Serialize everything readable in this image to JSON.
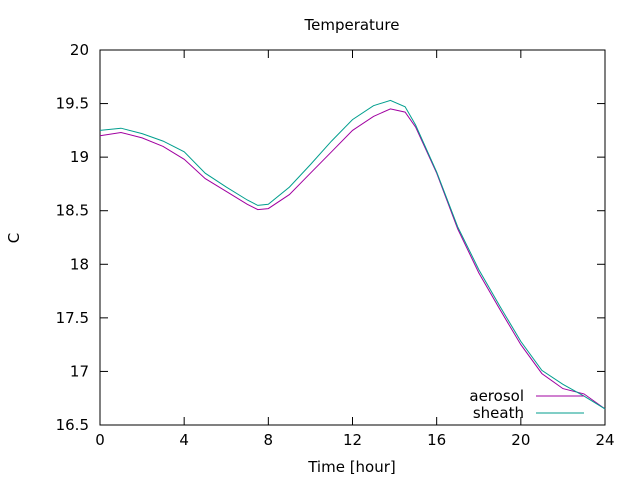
{
  "chart_data": {
    "type": "line",
    "title": "Temperature",
    "xlabel": "Time [hour]",
    "ylabel": "C",
    "xlim": [
      0,
      24
    ],
    "ylim": [
      16.5,
      20
    ],
    "xticks": [
      0,
      4,
      8,
      12,
      16,
      20,
      24
    ],
    "yticks": [
      16.5,
      17,
      17.5,
      18,
      18.5,
      19,
      19.5,
      20
    ],
    "grid": false,
    "legend_position": "bottom-right",
    "series": [
      {
        "name": "aerosol",
        "color": "#a000a0",
        "x": [
          0,
          1,
          2,
          3,
          4,
          5,
          6,
          7,
          7.5,
          8,
          9,
          10,
          11,
          12,
          13,
          13.8,
          14.5,
          15,
          16,
          17,
          18,
          19,
          20,
          21,
          22,
          23,
          24
        ],
        "y": [
          19.2,
          19.23,
          19.18,
          19.1,
          18.98,
          18.8,
          18.68,
          18.56,
          18.51,
          18.52,
          18.65,
          18.85,
          19.05,
          19.25,
          19.38,
          19.45,
          19.42,
          19.28,
          18.85,
          18.33,
          17.92,
          17.58,
          17.25,
          16.98,
          16.84,
          16.79,
          16.65
        ]
      },
      {
        "name": "sheath",
        "color": "#009e8e",
        "x": [
          0,
          1,
          2,
          3,
          4,
          5,
          6,
          7,
          7.5,
          8,
          9,
          10,
          11,
          12,
          13,
          13.8,
          14.5,
          15,
          16,
          17,
          18,
          19,
          20,
          21,
          22,
          23,
          24
        ],
        "y": [
          19.25,
          19.27,
          19.22,
          19.15,
          19.05,
          18.85,
          18.72,
          18.6,
          18.55,
          18.56,
          18.72,
          18.93,
          19.15,
          19.35,
          19.48,
          19.53,
          19.47,
          19.3,
          18.86,
          18.35,
          17.95,
          17.61,
          17.28,
          17.01,
          16.88,
          16.77,
          16.65
        ]
      }
    ]
  }
}
